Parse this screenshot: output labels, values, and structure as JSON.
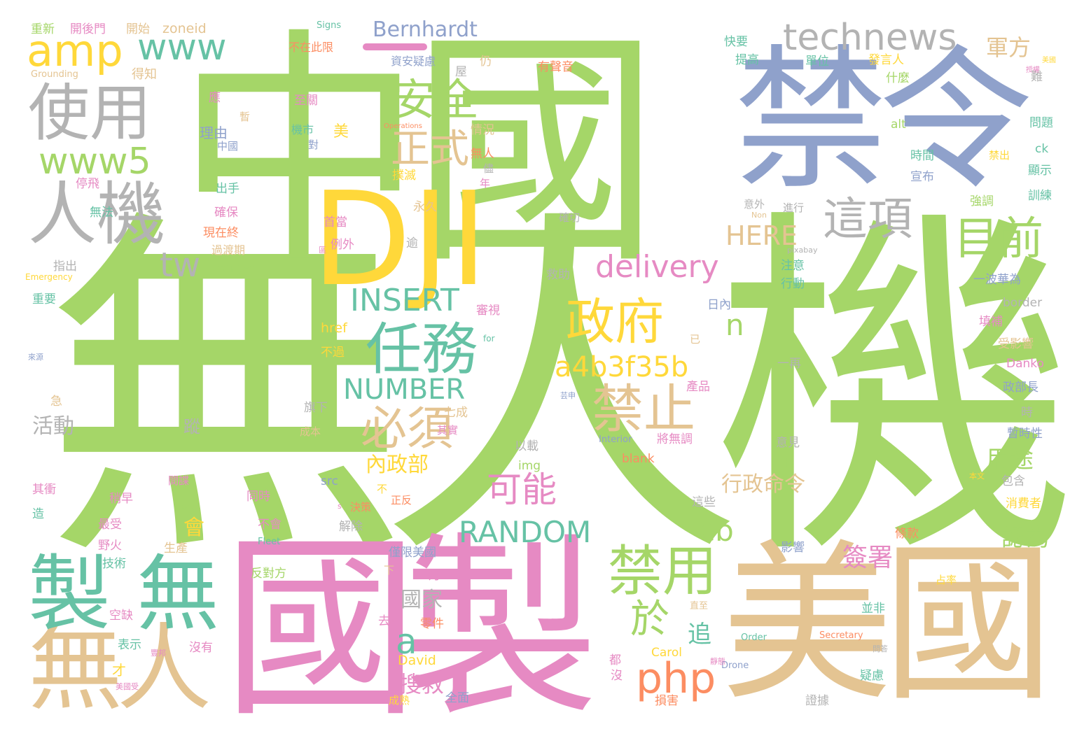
{
  "palette": {
    "green": "#A5D668",
    "blue": "#8FA1CB",
    "yellow": "#FFD83A",
    "pink": "#E68AC3",
    "teal": "#66C2A5",
    "gray": "#B3B3B3",
    "tan": "#E4C492",
    "orange": "#FC8D62"
  },
  "words": [
    {
      "text": "無人機",
      "color": "green"
    },
    {
      "text": "中國",
      "color": "green"
    },
    {
      "text": "禁令",
      "color": "blue"
    },
    {
      "text": "國製",
      "color": "pink"
    },
    {
      "text": "美國",
      "color": "tan"
    },
    {
      "text": "DJI",
      "color": "yellow"
    },
    {
      "text": "無人",
      "color": "tan"
    },
    {
      "text": "製",
      "color": "teal"
    },
    {
      "text": "無",
      "color": "teal"
    },
    {
      "text": "使用",
      "color": "gray"
    },
    {
      "text": "人機",
      "color": "gray"
    },
    {
      "text": "amp",
      "color": "yellow"
    },
    {
      "text": "www",
      "color": "teal"
    },
    {
      "text": "www5",
      "color": "green"
    },
    {
      "text": "tw",
      "color": "gray"
    },
    {
      "text": "technews",
      "color": "gray"
    },
    {
      "text": "安全",
      "color": "green"
    },
    {
      "text": "正式",
      "color": "tan"
    },
    {
      "text": "政府",
      "color": "yellow"
    },
    {
      "text": "任務",
      "color": "teal"
    },
    {
      "text": "這項",
      "color": "gray"
    },
    {
      "text": "目前",
      "color": "green"
    },
    {
      "text": "delivery",
      "color": "pink"
    },
    {
      "text": "INSERT",
      "color": "teal"
    },
    {
      "text": "a4b3f35b",
      "color": "yellow"
    },
    {
      "text": "NUMBER",
      "color": "teal"
    },
    {
      "text": "禁止",
      "color": "tan"
    },
    {
      "text": "必須",
      "color": "tan"
    },
    {
      "text": "可能",
      "color": "pink"
    },
    {
      "text": "RANDOM",
      "color": "teal"
    },
    {
      "text": "禁用",
      "color": "green"
    },
    {
      "text": "cb",
      "color": "green"
    },
    {
      "text": "於",
      "color": "green"
    },
    {
      "text": "php",
      "color": "orange"
    },
    {
      "text": "a",
      "color": "teal"
    },
    {
      "text": "n",
      "color": "green"
    },
    {
      "text": "HERE",
      "color": "tan"
    },
    {
      "text": "Bernhardt",
      "color": "blue"
    },
    {
      "text": "軍方",
      "color": "tan"
    },
    {
      "text": "搜救",
      "color": "pink"
    },
    {
      "text": "內政部",
      "color": "yellow"
    },
    {
      "text": "國家",
      "color": "gray"
    },
    {
      "text": "行政命令",
      "color": "tan"
    },
    {
      "text": "用途",
      "color": "green"
    },
    {
      "text": "認為",
      "color": "green"
    },
    {
      "text": "簽署",
      "color": "pink"
    },
    {
      "text": "活動",
      "color": "gray"
    },
    {
      "text": "追",
      "color": "teal"
    },
    {
      "text": "會",
      "color": "yellow"
    },
    {
      "text": "重新",
      "color": "green"
    },
    {
      "text": "開後門",
      "color": "pink"
    },
    {
      "text": "開始",
      "color": "tan"
    },
    {
      "text": "zoneid",
      "color": "tan"
    },
    {
      "text": "Signs",
      "color": "teal"
    },
    {
      "text": "不在此限",
      "color": "orange"
    },
    {
      "text": "資安疑慮",
      "color": "blue"
    },
    {
      "text": "得知",
      "color": "tan"
    },
    {
      "text": "Grounding",
      "color": "tan"
    },
    {
      "text": "應",
      "color": "pink"
    },
    {
      "text": "暫",
      "color": "tan"
    },
    {
      "text": "至關",
      "color": "pink"
    },
    {
      "text": "理由",
      "color": "blue"
    },
    {
      "text": "中國",
      "color": "blue"
    },
    {
      "text": "機市",
      "color": "teal"
    },
    {
      "text": "美",
      "color": "yellow"
    },
    {
      "text": "對",
      "color": "blue"
    },
    {
      "text": "Operations",
      "color": "orange"
    },
    {
      "text": "情況",
      "color": "tan"
    },
    {
      "text": "無人",
      "color": "orange"
    },
    {
      "text": "儘",
      "color": "gray"
    },
    {
      "text": "撲滅",
      "color": "yellow"
    },
    {
      "text": "年",
      "color": "pink"
    },
    {
      "text": "停飛",
      "color": "pink"
    },
    {
      "text": "出手",
      "color": "teal"
    },
    {
      "text": "無法",
      "color": "teal"
    },
    {
      "text": "確保",
      "color": "pink"
    },
    {
      "text": "現在終",
      "color": "orange"
    },
    {
      "text": "首當",
      "color": "pink"
    },
    {
      "text": "例外",
      "color": "pink"
    },
    {
      "text": "永久",
      "color": "tan"
    },
    {
      "text": "逾",
      "color": "gray"
    },
    {
      "text": "過渡期",
      "color": "tan"
    },
    {
      "text": "指出",
      "color": "gray"
    },
    {
      "text": "target",
      "color": "green"
    },
    {
      "text": "Emergency",
      "color": "yellow"
    },
    {
      "text": "救助",
      "color": "gray"
    },
    {
      "text": "重要",
      "color": "teal"
    },
    {
      "text": "href",
      "color": "yellow"
    },
    {
      "text": "審視",
      "color": "pink"
    },
    {
      "text": "不過",
      "color": "yellow"
    },
    {
      "text": "for",
      "color": "teal"
    },
    {
      "text": "旗下",
      "color": "gray"
    },
    {
      "text": "七成",
      "color": "tan"
    },
    {
      "text": "急",
      "color": "tan"
    },
    {
      "text": "蹤",
      "color": "gray"
    },
    {
      "text": "成本",
      "color": "tan"
    },
    {
      "text": "其實",
      "color": "pink"
    },
    {
      "text": "以載",
      "color": "gray"
    },
    {
      "text": "img",
      "color": "green"
    },
    {
      "text": "src",
      "color": "blue"
    },
    {
      "text": "不",
      "color": "yellow"
    },
    {
      "text": "正反",
      "color": "orange"
    },
    {
      "text": "決策",
      "color": "orange"
    },
    {
      "text": "間諜",
      "color": "pink"
    },
    {
      "text": "其衝",
      "color": "pink"
    },
    {
      "text": "稍早",
      "color": "pink"
    },
    {
      "text": "同時",
      "color": "pink"
    },
    {
      "text": "造",
      "color": "teal"
    },
    {
      "text": "avw",
      "color": "green"
    },
    {
      "text": "最受",
      "color": "pink"
    },
    {
      "text": "不會",
      "color": "pink"
    },
    {
      "text": "解除",
      "color": "gray"
    },
    {
      "text": "野火",
      "color": "pink"
    },
    {
      "text": "生產",
      "color": "tan"
    },
    {
      "text": "Fleet",
      "color": "teal"
    },
    {
      "text": "技術",
      "color": "teal"
    },
    {
      "text": "反對方",
      "color": "green"
    },
    {
      "text": "僅限美國",
      "color": "blue"
    },
    {
      "text": "下",
      "color": "tan"
    },
    {
      "text": "月",
      "color": "pink"
    },
    {
      "text": "去年",
      "color": "pink"
    },
    {
      "text": "零件",
      "color": "orange"
    },
    {
      "text": "David",
      "color": "yellow"
    },
    {
      "text": "空缺",
      "color": "pink"
    },
    {
      "text": "表示",
      "color": "teal"
    },
    {
      "text": "沒有",
      "color": "pink"
    },
    {
      "text": "才",
      "color": "yellow"
    },
    {
      "text": "成熟",
      "color": "yellow"
    },
    {
      "text": "全面",
      "color": "blue"
    },
    {
      "text": "都",
      "color": "pink"
    },
    {
      "text": "沒",
      "color": "pink"
    },
    {
      "text": "Carol",
      "color": "yellow"
    },
    {
      "text": "損害",
      "color": "orange"
    },
    {
      "text": "直至",
      "color": "tan"
    },
    {
      "text": "Drone",
      "color": "blue"
    },
    {
      "text": "Order",
      "color": "teal"
    },
    {
      "text": "Secretary",
      "color": "orange"
    },
    {
      "text": "並非",
      "color": "teal"
    },
    {
      "text": "疑慮",
      "color": "teal"
    },
    {
      "text": "證據",
      "color": "gray"
    },
    {
      "text": "占率",
      "color": "yellow"
    },
    {
      "text": "有聲音",
      "color": "orange"
    },
    {
      "text": "快要",
      "color": "teal"
    },
    {
      "text": "提高",
      "color": "teal"
    },
    {
      "text": "單位",
      "color": "teal"
    },
    {
      "text": "發言人",
      "color": "yellow"
    },
    {
      "text": "什麼",
      "color": "green"
    },
    {
      "text": "難",
      "color": "gray"
    },
    {
      "text": "問題",
      "color": "teal"
    },
    {
      "text": "alt",
      "color": "green"
    },
    {
      "text": "ck",
      "color": "teal"
    },
    {
      "text": "時間",
      "color": "teal"
    },
    {
      "text": "禁出",
      "color": "yellow"
    },
    {
      "text": "顯示",
      "color": "teal"
    },
    {
      "text": "宣布",
      "color": "blue"
    },
    {
      "text": "訓練",
      "color": "teal"
    },
    {
      "text": "強調",
      "color": "green"
    },
    {
      "text": "意外",
      "color": "gray"
    },
    {
      "text": "進行",
      "color": "gray"
    },
    {
      "text": "確切",
      "color": "gray"
    },
    {
      "text": "pixabay",
      "color": "gray"
    },
    {
      "text": "注意",
      "color": "teal"
    },
    {
      "text": "行動",
      "color": "teal"
    },
    {
      "text": "一波華為",
      "color": "blue"
    },
    {
      "text": "border",
      "color": "gray"
    },
    {
      "text": "日內",
      "color": "blue"
    },
    {
      "text": "填補",
      "color": "pink"
    },
    {
      "text": "受影響",
      "color": "tan"
    },
    {
      "text": "Danko",
      "color": "pink"
    },
    {
      "text": "一再",
      "color": "gray"
    },
    {
      "text": "產品",
      "color": "pink"
    },
    {
      "text": "政部長",
      "color": "blue"
    },
    {
      "text": "時",
      "color": "gray"
    },
    {
      "text": "暫時性",
      "color": "blue"
    },
    {
      "text": "Interior",
      "color": "blue"
    },
    {
      "text": "將無調",
      "color": "pink"
    },
    {
      "text": "blank",
      "color": "orange"
    },
    {
      "text": "意見",
      "color": "gray"
    },
    {
      "text": "上",
      "color": "green"
    },
    {
      "text": "本文",
      "color": "yellow"
    },
    {
      "text": "包含",
      "color": "gray"
    },
    {
      "text": "消費者",
      "color": "yellow"
    },
    {
      "text": "這些",
      "color": "gray"
    },
    {
      "text": "影響",
      "color": "blue"
    },
    {
      "text": "條款",
      "color": "orange"
    },
    {
      "text": "已",
      "color": "tan"
    },
    {
      "text": "仍",
      "color": "tan"
    },
    {
      "text": "Non",
      "color": "tan"
    },
    {
      "text": "芸申",
      "color": "blue"
    },
    {
      "text": "s",
      "color": "pink"
    },
    {
      "text": "美國受",
      "color": "pink"
    },
    {
      "text": "來源",
      "color": "blue"
    },
    {
      "text": "豐邦",
      "color": "pink"
    },
    {
      "text": "美國",
      "color": "yellow"
    },
    {
      "text": "授權",
      "color": "pink"
    },
    {
      "text": "問答",
      "color": "gray"
    },
    {
      "text": "靜態",
      "color": "pink"
    },
    {
      "text": "區",
      "color": "pink"
    },
    {
      "text": "屋",
      "color": "gray"
    }
  ]
}
